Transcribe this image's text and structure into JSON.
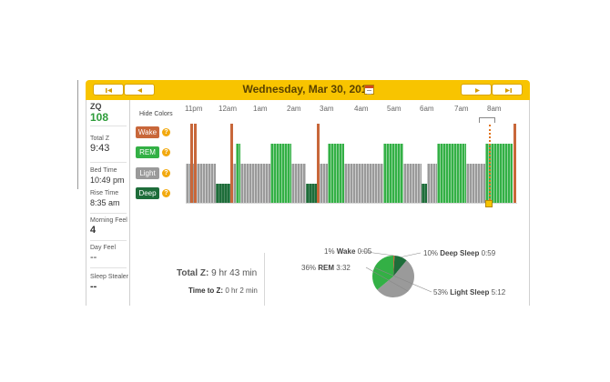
{
  "header": {
    "title": "Wednesday, Mar 30, 2011"
  },
  "sidebar": {
    "zq_label": "ZQ",
    "zq_value": "108",
    "total_z_label": "Total Z",
    "total_z_value": "9:43",
    "bed_time_label": "Bed Time",
    "bed_time_value": "10:49 pm",
    "rise_time_label": "Rise Time",
    "rise_time_value": "8:35 am",
    "morning_feel_label": "Morning Feel",
    "morning_feel_value": "4",
    "day_feel_label": "Day Feel",
    "day_feel_value": "--",
    "sleep_stealer_label": "Sleep Stealer",
    "sleep_stealer_value": "--"
  },
  "legend": {
    "hide_colors": "Hide Colors",
    "items": [
      {
        "label": "Wake",
        "color": "#c8673a"
      },
      {
        "label": "REM",
        "color": "#33b045"
      },
      {
        "label": "Light",
        "color": "#9a9a9a"
      },
      {
        "label": "Deep",
        "color": "#1e6d3a"
      }
    ],
    "help_glyph": "?"
  },
  "hours": [
    "11pm",
    "12am",
    "1am",
    "2am",
    "3am",
    "4am",
    "5am",
    "6am",
    "7am",
    "8am"
  ],
  "summary": {
    "total_z_label": "Total Z:",
    "total_z_value": "9 hr 43 min",
    "time_to_z_label": "Time to Z:",
    "time_to_z_value": "0 hr 2 min"
  },
  "chart_data": {
    "type": "pie",
    "categories": [
      "Wake",
      "Deep Sleep",
      "Light Sleep",
      "REM"
    ],
    "values": [
      1,
      10,
      53,
      36
    ],
    "durations": [
      "0:05",
      "0:59",
      "5:12",
      "3:32"
    ],
    "percent_labels": [
      "1%",
      "10%",
      "53%",
      "36%"
    ],
    "colors": [
      "#c8673a",
      "#1e6d3a",
      "#9a9a9a",
      "#33b045"
    ]
  }
}
